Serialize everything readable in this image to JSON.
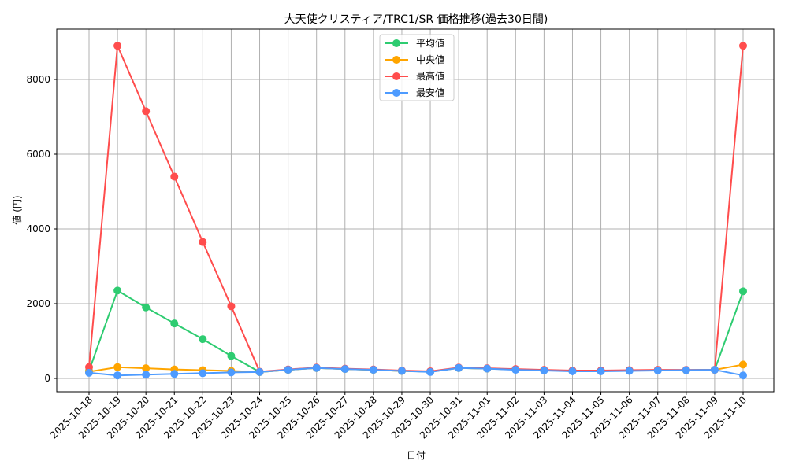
{
  "chart_data": {
    "type": "line",
    "title": "大天使クリスティア/TRC1/SR 価格推移(過去30日間)",
    "xlabel": "日付",
    "ylabel": "値 (円)",
    "ylim": [
      -350,
      9350
    ],
    "yticks": [
      0,
      2000,
      4000,
      6000,
      8000
    ],
    "grid": true,
    "legend_position": "upper center",
    "categories": [
      "2025-10-18",
      "2025-10-19",
      "2025-10-20",
      "2025-10-21",
      "2025-10-22",
      "2025-10-23",
      "2025-10-24",
      "2025-10-25",
      "2025-10-26",
      "2025-10-27",
      "2025-10-28",
      "2025-10-29",
      "2025-10-30",
      "2025-10-31",
      "2025-11-01",
      "2025-11-02",
      "2025-11-03",
      "2025-11-04",
      "2025-11-05",
      "2025-11-06",
      "2025-11-07",
      "2025-11-08",
      "2025-11-09",
      "2025-11-10"
    ],
    "series": [
      {
        "name": "平均値",
        "color": "#2ecc71",
        "values": [
          200,
          2350,
          1900,
          1470,
          1050,
          600,
          170,
          230,
          280,
          250,
          230,
          200,
          180,
          280,
          260,
          240,
          220,
          200,
          200,
          210,
          220,
          220,
          230,
          2330
        ]
      },
      {
        "name": "中央値",
        "color": "#ffa500",
        "values": [
          180,
          300,
          270,
          240,
          220,
          200,
          170,
          230,
          280,
          250,
          230,
          200,
          180,
          280,
          260,
          240,
          220,
          200,
          200,
          210,
          220,
          220,
          230,
          370
        ]
      },
      {
        "name": "最高値",
        "color": "#ff4d4d",
        "values": [
          300,
          8900,
          7150,
          5400,
          3650,
          1930,
          180,
          240,
          290,
          260,
          240,
          210,
          190,
          290,
          270,
          250,
          230,
          210,
          210,
          220,
          230,
          230,
          230,
          8900
        ]
      },
      {
        "name": "最安値",
        "color": "#4d9bff",
        "values": [
          150,
          80,
          100,
          120,
          140,
          160,
          170,
          230,
          280,
          250,
          230,
          200,
          170,
          280,
          260,
          230,
          210,
          190,
          190,
          200,
          210,
          220,
          230,
          80
        ]
      }
    ]
  }
}
